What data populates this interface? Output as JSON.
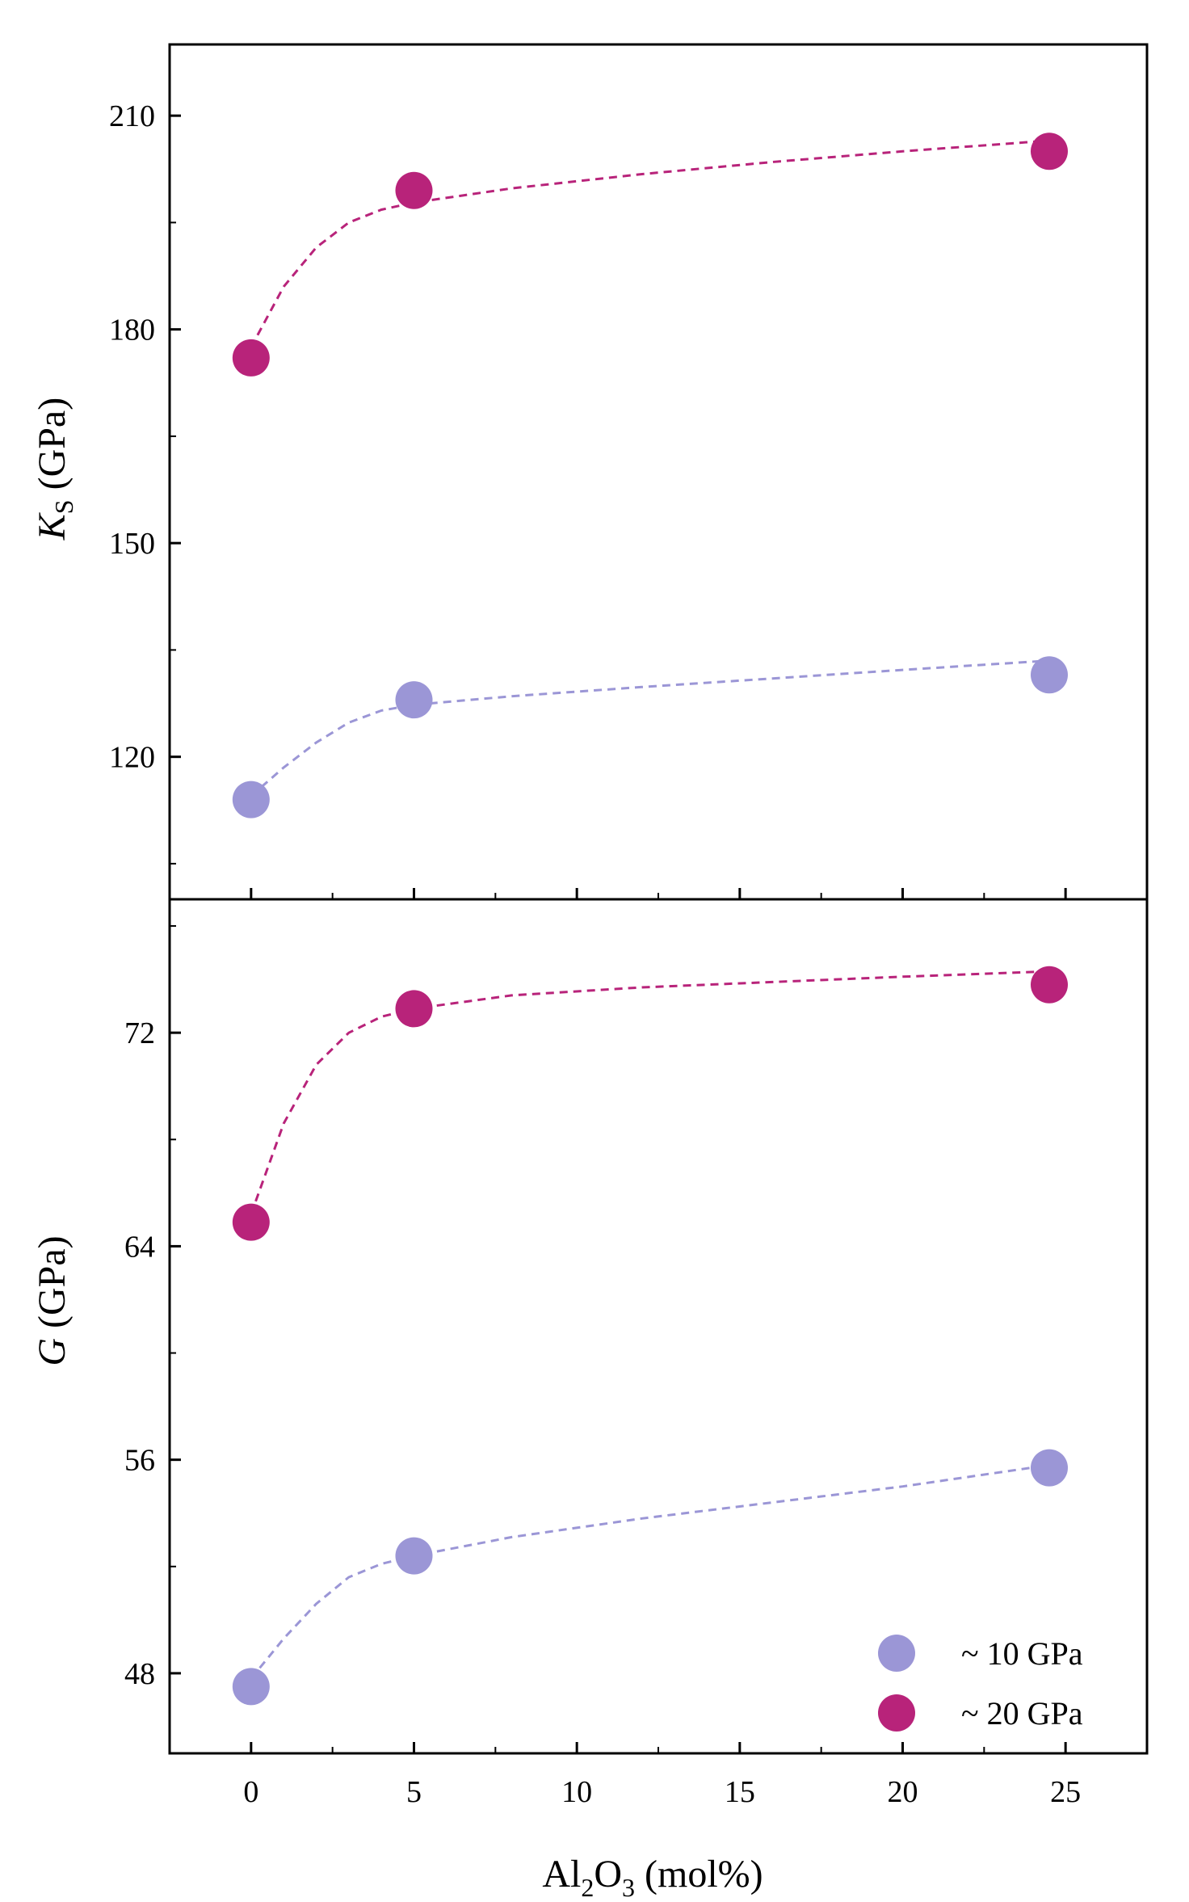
{
  "colors": {
    "series_10": "#9b96d6",
    "series_20": "#b8237a",
    "axis": "#000000"
  },
  "x_axis": {
    "range": [
      -2.5,
      27.5
    ],
    "ticks": [
      0,
      5,
      10,
      15,
      20,
      25
    ],
    "tick_labels": [
      "0",
      "5",
      "10",
      "15",
      "20",
      "25"
    ],
    "label_pre": "Al",
    "label_sub1": "2",
    "label_mid": "O",
    "label_sub2": "3",
    "label_post": " (mol%)"
  },
  "legend": [
    {
      "label": "~ 10 GPa"
    },
    {
      "label": "~ 20 GPa"
    }
  ],
  "chart_data": [
    {
      "type": "scatter",
      "panel": "top",
      "ylabel_symbol": "K",
      "ylabel_sub": "S",
      "ylabel_unit": " (GPa)",
      "ylim": [
        100,
        220
      ],
      "yticks": [
        120,
        150,
        180,
        210
      ],
      "ytick_labels": [
        "120",
        "150",
        "180",
        "210"
      ],
      "x": [
        0,
        5,
        24.5
      ],
      "series": [
        {
          "name": "~ 10 GPa",
          "values": [
            114,
            128,
            131.5
          ],
          "fit_x": [
            0,
            1,
            2,
            3,
            4,
            5,
            8,
            12,
            16,
            20,
            24.5
          ],
          "fit_y": [
            114.5,
            118.5,
            122,
            124.8,
            126.5,
            127.3,
            128.5,
            129.8,
            131,
            132.2,
            133.5
          ]
        },
        {
          "name": "~ 20 GPa",
          "values": [
            176,
            199.5,
            205
          ],
          "fit_x": [
            0,
            1,
            2,
            3,
            4,
            5,
            8,
            12,
            16,
            20,
            24.5
          ],
          "fit_y": [
            177.5,
            186,
            191.5,
            195,
            196.8,
            197.8,
            199.8,
            201.8,
            203.5,
            205,
            206.5
          ]
        }
      ]
    },
    {
      "type": "scatter",
      "panel": "bottom",
      "ylabel_symbol": "G",
      "ylabel_sub": "",
      "ylabel_unit": " (GPa)",
      "ylim": [
        45,
        77
      ],
      "yticks": [
        48,
        56,
        64,
        72
      ],
      "ytick_labels": [
        "48",
        "56",
        "64",
        "72"
      ],
      "x": [
        0,
        5,
        24.5
      ],
      "series": [
        {
          "name": "~ 10 GPa",
          "values": [
            47.5,
            52.4,
            55.7
          ],
          "fit_x": [
            0,
            1,
            2,
            3,
            4,
            5,
            8,
            12,
            16,
            20,
            24.5
          ],
          "fit_y": [
            47.8,
            49.3,
            50.6,
            51.6,
            52.1,
            52.4,
            53.1,
            53.8,
            54.4,
            55.0,
            55.8
          ]
        },
        {
          "name": "~ 20 GPa",
          "values": [
            64.9,
            72.9,
            73.8
          ],
          "fit_x": [
            0,
            1,
            2,
            3,
            4,
            5,
            8,
            12,
            16,
            20,
            24.5
          ],
          "fit_y": [
            65.2,
            68.6,
            70.8,
            72.0,
            72.6,
            72.9,
            73.4,
            73.7,
            73.9,
            74.1,
            74.3
          ]
        }
      ]
    }
  ]
}
